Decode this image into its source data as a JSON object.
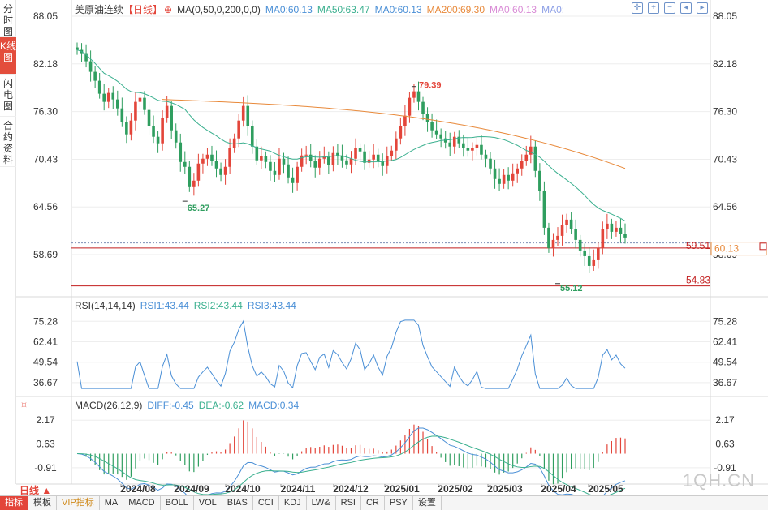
{
  "sidebar": {
    "tabs": [
      {
        "label": "分时图",
        "active": false
      },
      {
        "label": "K线图",
        "active": true
      },
      {
        "label": "闪电图",
        "active": false
      },
      {
        "label": "合约资料",
        "active": false
      }
    ]
  },
  "main_legend": {
    "title": "美原油连续",
    "period_tag": "【日线】",
    "ma_params": "MA(0,50,0,200,0,0)",
    "items": [
      {
        "text": "MA0:60.13",
        "color": "#4a8fd6"
      },
      {
        "text": "MA50:63.47",
        "color": "#3bb08f"
      },
      {
        "text": "MA0:60.13",
        "color": "#4a8fd6"
      },
      {
        "text": "MA200:69.30",
        "color": "#e8893a"
      },
      {
        "text": "MA0:60.13",
        "color": "#d98bd6"
      },
      {
        "text": "MA0:",
        "color": "#8c9fe6"
      }
    ]
  },
  "rsi_legend": {
    "title": "RSI(14,14,14)",
    "items": [
      {
        "text": "RSI1:43.44",
        "color": "#4a8fd6"
      },
      {
        "text": "RSI2:43.44",
        "color": "#3bb08f"
      },
      {
        "text": "RSI3:43.44",
        "color": "#4a8fd6"
      }
    ]
  },
  "macd_legend": {
    "title": "MACD(26,12,9)",
    "items": [
      {
        "text": "DIFF:-0.45",
        "color": "#4a8fd6"
      },
      {
        "text": "DEA:-0.62",
        "color": "#3bb08f"
      },
      {
        "text": "MACD:0.34",
        "color": "#4a8fd6"
      }
    ]
  },
  "price_axis": [
    "88.05",
    "82.18",
    "76.30",
    "70.43",
    "64.56",
    "58.69"
  ],
  "rsi_axis": [
    "75.28",
    "62.41",
    "49.54",
    "36.67"
  ],
  "macd_axis": [
    "2.17",
    "0.63",
    "-0.91"
  ],
  "annotations": {
    "high": "79.39",
    "low1": "65.27",
    "low2": "55.12",
    "line1": "59.51",
    "line2": "54.83",
    "current": "60.13"
  },
  "time_axis": [
    "2024/08",
    "2024/09",
    "2024/10",
    "2024/11",
    "2024/12",
    "2025/01",
    "2025/02",
    "2025/03",
    "2025/04",
    "2025/05"
  ],
  "period_button": "日线 ▲",
  "bottom_tabs": [
    "指标",
    "模板",
    "VIP指标",
    "MA",
    "MACD",
    "BOLL",
    "VOL",
    "BIAS",
    "CCI",
    "KDJ",
    "LW&",
    "RSI",
    "CR",
    "PSY",
    "设置"
  ],
  "watermark": "1QH.CN",
  "colors": {
    "up": "#e3453a",
    "down": "#2f9e5f",
    "ma50": "#3bb08f",
    "ma200": "#e8893a",
    "rsi": "#4a8fd6"
  },
  "chart_data": {
    "type": "candlestick",
    "series_closes_approx": [
      83.9,
      83.5,
      82.5,
      81.2,
      80.1,
      78.5,
      77.5,
      78.6,
      77.8,
      76.7,
      75.0,
      73.5,
      75.2,
      77.5,
      78.0,
      76.5,
      74.5,
      73.2,
      72.4,
      75.5,
      77.0,
      74.0,
      72.5,
      70.1,
      69.5,
      67.0,
      67.8,
      69.9,
      70.5,
      71.0,
      70.2,
      69.3,
      68.5,
      69.5,
      71.8,
      73.0,
      75.2,
      77.0,
      74.5,
      72.0,
      70.3,
      70.8,
      70.1,
      69.0,
      68.5,
      70.5,
      69.8,
      68.2,
      67.5,
      69.5,
      70.9,
      71.0,
      70.2,
      69.4,
      70.5,
      70.8,
      69.7,
      71.2,
      70.9,
      70.3,
      69.8,
      70.5,
      71.8,
      71.4,
      70.0,
      70.4,
      71.0,
      70.2,
      69.6,
      70.8,
      71.5,
      73.0,
      74.5,
      75.8,
      78.0,
      78.8,
      77.5,
      76.0,
      75.0,
      74.0,
      73.5,
      73.0,
      72.5,
      72.0,
      73.2,
      72.4,
      71.8,
      71.5,
      71.8,
      72.2,
      71.0,
      70.5,
      69.3,
      68.0,
      67.4,
      68.5,
      67.8,
      68.7,
      69.3,
      70.2,
      71.0,
      72.0,
      69.0,
      66.5,
      62.0,
      59.5,
      60.5,
      61.0,
      62.3,
      63.0,
      61.8,
      60.5,
      59.2,
      58.5,
      57.3,
      58.0,
      59.5,
      61.8,
      62.5,
      61.5,
      62.0,
      61.2,
      60.8
    ],
    "ma50_end": 63.47,
    "ma200_end": 69.3,
    "high": 79.39,
    "lows": [
      65.27,
      55.12
    ],
    "ylim": [
      53.5,
      88.05
    ]
  }
}
